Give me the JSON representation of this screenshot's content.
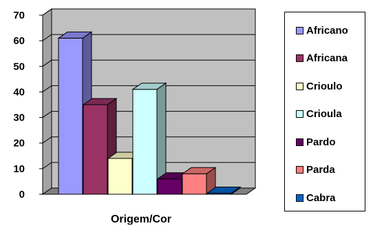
{
  "chart_data": {
    "type": "bar",
    "xlabel": "Origem/Cor",
    "ylim": [
      0,
      70
    ],
    "yticks": [
      0,
      10,
      20,
      30,
      40,
      50,
      60,
      70
    ],
    "grid": true,
    "legend_position": "right",
    "series": [
      {
        "name": "Africano",
        "value": 61,
        "color": "#9999ff"
      },
      {
        "name": "Africana",
        "value": 35,
        "color": "#993366"
      },
      {
        "name": "Crioulo",
        "value": 14,
        "color": "#ffffcc"
      },
      {
        "name": "Crioula",
        "value": 41,
        "color": "#ccffff"
      },
      {
        "name": "Pardo",
        "value": 6,
        "color": "#660066"
      },
      {
        "name": "Parda",
        "value": 8,
        "color": "#ff8080"
      },
      {
        "name": "Cabra",
        "value": 0,
        "color": "#0066cc"
      }
    ]
  },
  "style": {
    "plot_wall_color": "#c0c0c0",
    "floor_color": "#808080"
  }
}
